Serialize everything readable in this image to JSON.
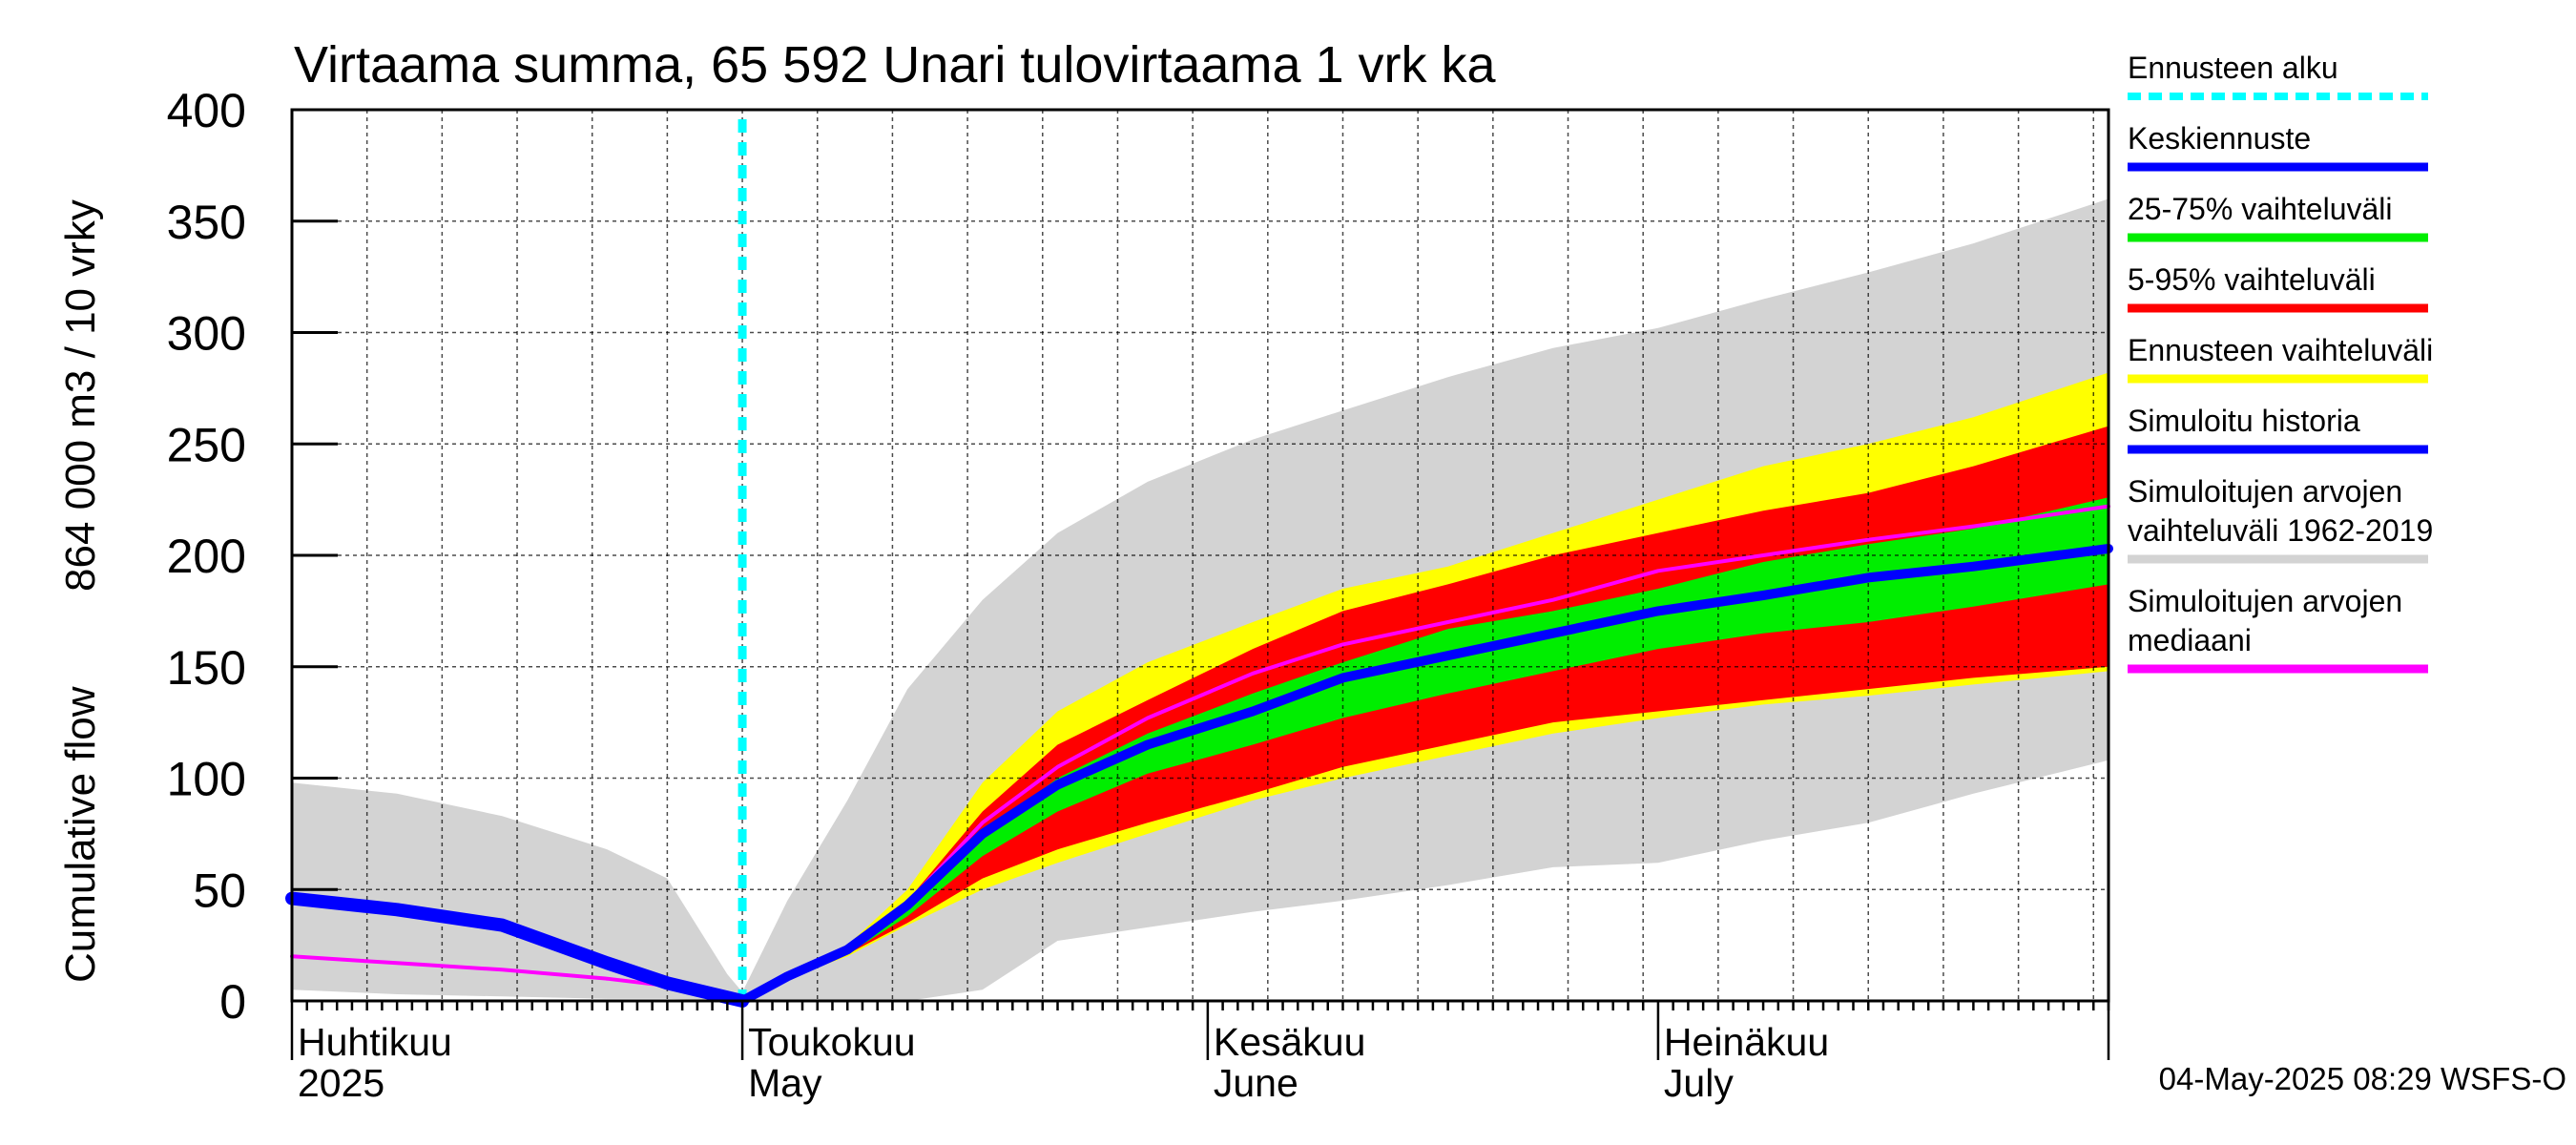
{
  "chart_data": {
    "type": "area",
    "title": "Virtaama summa, 65 592 Unari tulovirtaama 1 vrk ka",
    "ylabel_left": "Cumulative flow",
    "ylabel_right": "864 000 m3 / 10 vrky",
    "ylim": [
      0,
      400
    ],
    "yticks": [
      "0",
      "50",
      "100",
      "150",
      "200",
      "250",
      "300",
      "350",
      "400"
    ],
    "xlim": [
      "2025-04-01",
      "2025-07-31"
    ],
    "month_labels": [
      {
        "fi": "Huhtikuu",
        "en": "2025"
      },
      {
        "fi": "Toukokuu",
        "en": "May"
      },
      {
        "fi": "Kesäkuu",
        "en": "June"
      },
      {
        "fi": "Heinäkuu",
        "en": "July"
      }
    ],
    "forecast_start": "2025-05-01",
    "grid": true,
    "legend_position": "right",
    "series": [
      {
        "name": "Simuloitujen arvojen vaihteluväli 1962-2019",
        "color": "#d3d3d3",
        "x": [
          "2025-04-01",
          "2025-04-08",
          "2025-04-15",
          "2025-04-22",
          "2025-04-26",
          "2025-04-30",
          "2025-05-01",
          "2025-05-04",
          "2025-05-08",
          "2025-05-12",
          "2025-05-17",
          "2025-05-22",
          "2025-05-28",
          "2025-06-04",
          "2025-06-10",
          "2025-06-17",
          "2025-06-24",
          "2025-07-01",
          "2025-07-08",
          "2025-07-15",
          "2025-07-22",
          "2025-07-31"
        ],
        "upper": [
          98,
          93,
          83,
          68,
          55,
          12,
          4,
          45,
          90,
          140,
          180,
          210,
          233,
          252,
          265,
          280,
          293,
          302,
          315,
          327,
          340,
          360
        ],
        "lower": [
          5,
          3,
          2,
          1,
          1,
          0,
          0,
          0,
          0,
          0,
          5,
          27,
          33,
          40,
          45,
          52,
          60,
          62,
          72,
          80,
          93,
          108
        ]
      },
      {
        "name": "Ennusteen vaihteluväli",
        "color": "#ffff00",
        "x": [
          "2025-05-01",
          "2025-05-04",
          "2025-05-08",
          "2025-05-12",
          "2025-05-17",
          "2025-05-22",
          "2025-05-28",
          "2025-06-04",
          "2025-06-10",
          "2025-06-17",
          "2025-06-24",
          "2025-07-01",
          "2025-07-08",
          "2025-07-15",
          "2025-07-22",
          "2025-07-31"
        ],
        "upper": [
          0,
          12,
          25,
          50,
          98,
          130,
          152,
          170,
          185,
          195,
          210,
          225,
          240,
          250,
          262,
          282
        ],
        "lower": [
          0,
          10,
          20,
          34,
          50,
          62,
          75,
          90,
          100,
          110,
          120,
          127,
          133,
          137,
          142,
          148
        ]
      },
      {
        "name": "5-95% vaihteluväli",
        "color": "#ff0000",
        "x": [
          "2025-05-01",
          "2025-05-04",
          "2025-05-08",
          "2025-05-12",
          "2025-05-17",
          "2025-05-22",
          "2025-05-28",
          "2025-06-04",
          "2025-06-10",
          "2025-06-17",
          "2025-06-24",
          "2025-07-01",
          "2025-07-08",
          "2025-07-15",
          "2025-07-22",
          "2025-07-31"
        ],
        "upper": [
          0,
          12,
          24,
          45,
          85,
          115,
          135,
          158,
          175,
          187,
          200,
          210,
          220,
          228,
          240,
          258
        ],
        "lower": [
          0,
          10,
          21,
          35,
          55,
          68,
          80,
          93,
          105,
          115,
          125,
          130,
          135,
          140,
          145,
          150
        ]
      },
      {
        "name": "25-75% vaihteluväli",
        "color": "#00ee00",
        "x": [
          "2025-05-01",
          "2025-05-04",
          "2025-05-08",
          "2025-05-12",
          "2025-05-17",
          "2025-05-22",
          "2025-05-28",
          "2025-06-04",
          "2025-06-10",
          "2025-06-17",
          "2025-06-24",
          "2025-07-01",
          "2025-07-08",
          "2025-07-15",
          "2025-07-22",
          "2025-07-31"
        ],
        "upper": [
          0,
          11,
          23,
          42,
          75,
          100,
          120,
          138,
          152,
          167,
          175,
          185,
          197,
          205,
          212,
          226
        ],
        "lower": [
          0,
          10,
          21,
          38,
          65,
          85,
          102,
          115,
          127,
          138,
          148,
          158,
          165,
          170,
          177,
          187
        ]
      },
      {
        "name": "Simuloitujen arvojen mediaani",
        "color": "#ff00ff",
        "x": [
          "2025-04-01",
          "2025-04-08",
          "2025-04-15",
          "2025-04-22",
          "2025-04-27",
          "2025-05-01",
          "2025-05-04",
          "2025-05-08",
          "2025-05-12",
          "2025-05-17",
          "2025-05-22",
          "2025-05-28",
          "2025-06-04",
          "2025-06-10",
          "2025-06-17",
          "2025-06-24",
          "2025-07-01",
          "2025-07-08",
          "2025-07-15",
          "2025-07-22",
          "2025-07-31"
        ],
        "y": [
          20,
          17,
          14,
          10,
          6,
          0,
          11,
          24,
          44,
          80,
          105,
          127,
          147,
          160,
          170,
          180,
          193,
          200,
          207,
          213,
          222
        ]
      },
      {
        "name": "Simuloitu historia",
        "color": "#0000ff",
        "x": [
          "2025-04-01",
          "2025-04-08",
          "2025-04-15",
          "2025-04-22",
          "2025-04-26",
          "2025-05-01"
        ],
        "y": [
          46,
          41,
          34,
          17,
          8,
          0
        ]
      },
      {
        "name": "Keskiennuste",
        "color": "#0000ff",
        "x": [
          "2025-05-01",
          "2025-05-04",
          "2025-05-08",
          "2025-05-12",
          "2025-05-17",
          "2025-05-22",
          "2025-05-28",
          "2025-06-04",
          "2025-06-10",
          "2025-06-17",
          "2025-06-24",
          "2025-07-01",
          "2025-07-08",
          "2025-07-15",
          "2025-07-22",
          "2025-07-31"
        ],
        "y": [
          0,
          11,
          23,
          43,
          75,
          97,
          115,
          130,
          145,
          155,
          165,
          175,
          182,
          190,
          195,
          203
        ]
      }
    ]
  },
  "legend": [
    {
      "label": "Ennusteen alku",
      "color": "#00ffff",
      "style": "dotted"
    },
    {
      "label": "Keskiennuste",
      "color": "#0000ff",
      "style": "solid"
    },
    {
      "label": "25-75% vaihteluväli",
      "color": "#00ee00",
      "style": "solid"
    },
    {
      "label": "5-95% vaihteluväli",
      "color": "#ff0000",
      "style": "solid"
    },
    {
      "label": "Ennusteen vaihteluväli",
      "color": "#ffff00",
      "style": "solid"
    },
    {
      "label": "Simuloitu historia",
      "color": "#0000ff",
      "style": "solid"
    },
    {
      "label": "Simuloitujen arvojen\nvaihteluväli 1962-2019",
      "color": "#d3d3d3",
      "style": "solid"
    },
    {
      "label": "Simuloitujen arvojen\nmediaani",
      "color": "#ff00ff",
      "style": "solid"
    }
  ],
  "footer": "04-May-2025 08:29 WSFS-O"
}
